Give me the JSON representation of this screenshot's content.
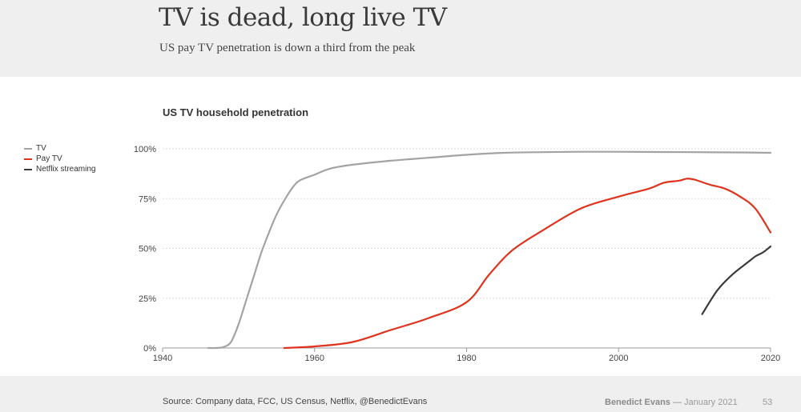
{
  "header": {
    "title": "TV is dead, long live TV",
    "subtitle": "US pay TV penetration is down a third from the peak"
  },
  "footer": {
    "source": "Source: Company data, FCC, US Census, Netflix, @BenedictEvans",
    "author": "Benedict Evans",
    "separator": "—",
    "date": "January 2021",
    "page": "53"
  },
  "chart_data": {
    "type": "line",
    "title": "US TV household penetration",
    "xlabel": "",
    "ylabel": "",
    "xlim": [
      1940,
      2020
    ],
    "ylim": [
      0,
      100
    ],
    "x_ticks": [
      "1940",
      "1960",
      "1980",
      "2000",
      "2020"
    ],
    "y_ticks": [
      "0%",
      "25%",
      "50%",
      "75%",
      "100%"
    ],
    "grid": true,
    "legend_position": "left",
    "series": [
      {
        "name": "TV",
        "color": "#a3a3a3",
        "x": [
          1946,
          1947,
          1948,
          1949,
          1950,
          1951,
          1952,
          1953,
          1954,
          1955,
          1956,
          1957,
          1958,
          1960,
          1962,
          1965,
          1970,
          1975,
          1980,
          1985,
          1990,
          1995,
          2000,
          2005,
          2010,
          2015,
          2020
        ],
        "y": [
          0,
          0,
          0.5,
          3,
          12,
          24,
          36,
          48,
          58,
          67,
          74,
          80,
          84,
          87,
          90,
          92,
          94,
          95.5,
          97,
          98,
          98.3,
          98.5,
          98.5,
          98.4,
          98.3,
          98.2,
          98
        ]
      },
      {
        "name": "Pay TV",
        "color": "#e0331d",
        "x": [
          1956,
          1960,
          1965,
          1970,
          1975,
          1980,
          1983,
          1986,
          1990,
          1995,
          2000,
          2004,
          2006,
          2008,
          2009,
          2010,
          2012,
          2014,
          2016,
          2018,
          2020
        ],
        "y": [
          0,
          0.8,
          3,
          9,
          15,
          23,
          37,
          49,
          59,
          70,
          76,
          80,
          83,
          84,
          85,
          84.5,
          82,
          80,
          76,
          70,
          58
        ]
      },
      {
        "name": "Netflix streaming",
        "color": "#3a3a3a",
        "x": [
          2011,
          2013,
          2015,
          2017,
          2018,
          2019,
          2020
        ],
        "y": [
          17,
          29,
          37,
          43,
          46,
          48,
          51
        ]
      }
    ]
  }
}
